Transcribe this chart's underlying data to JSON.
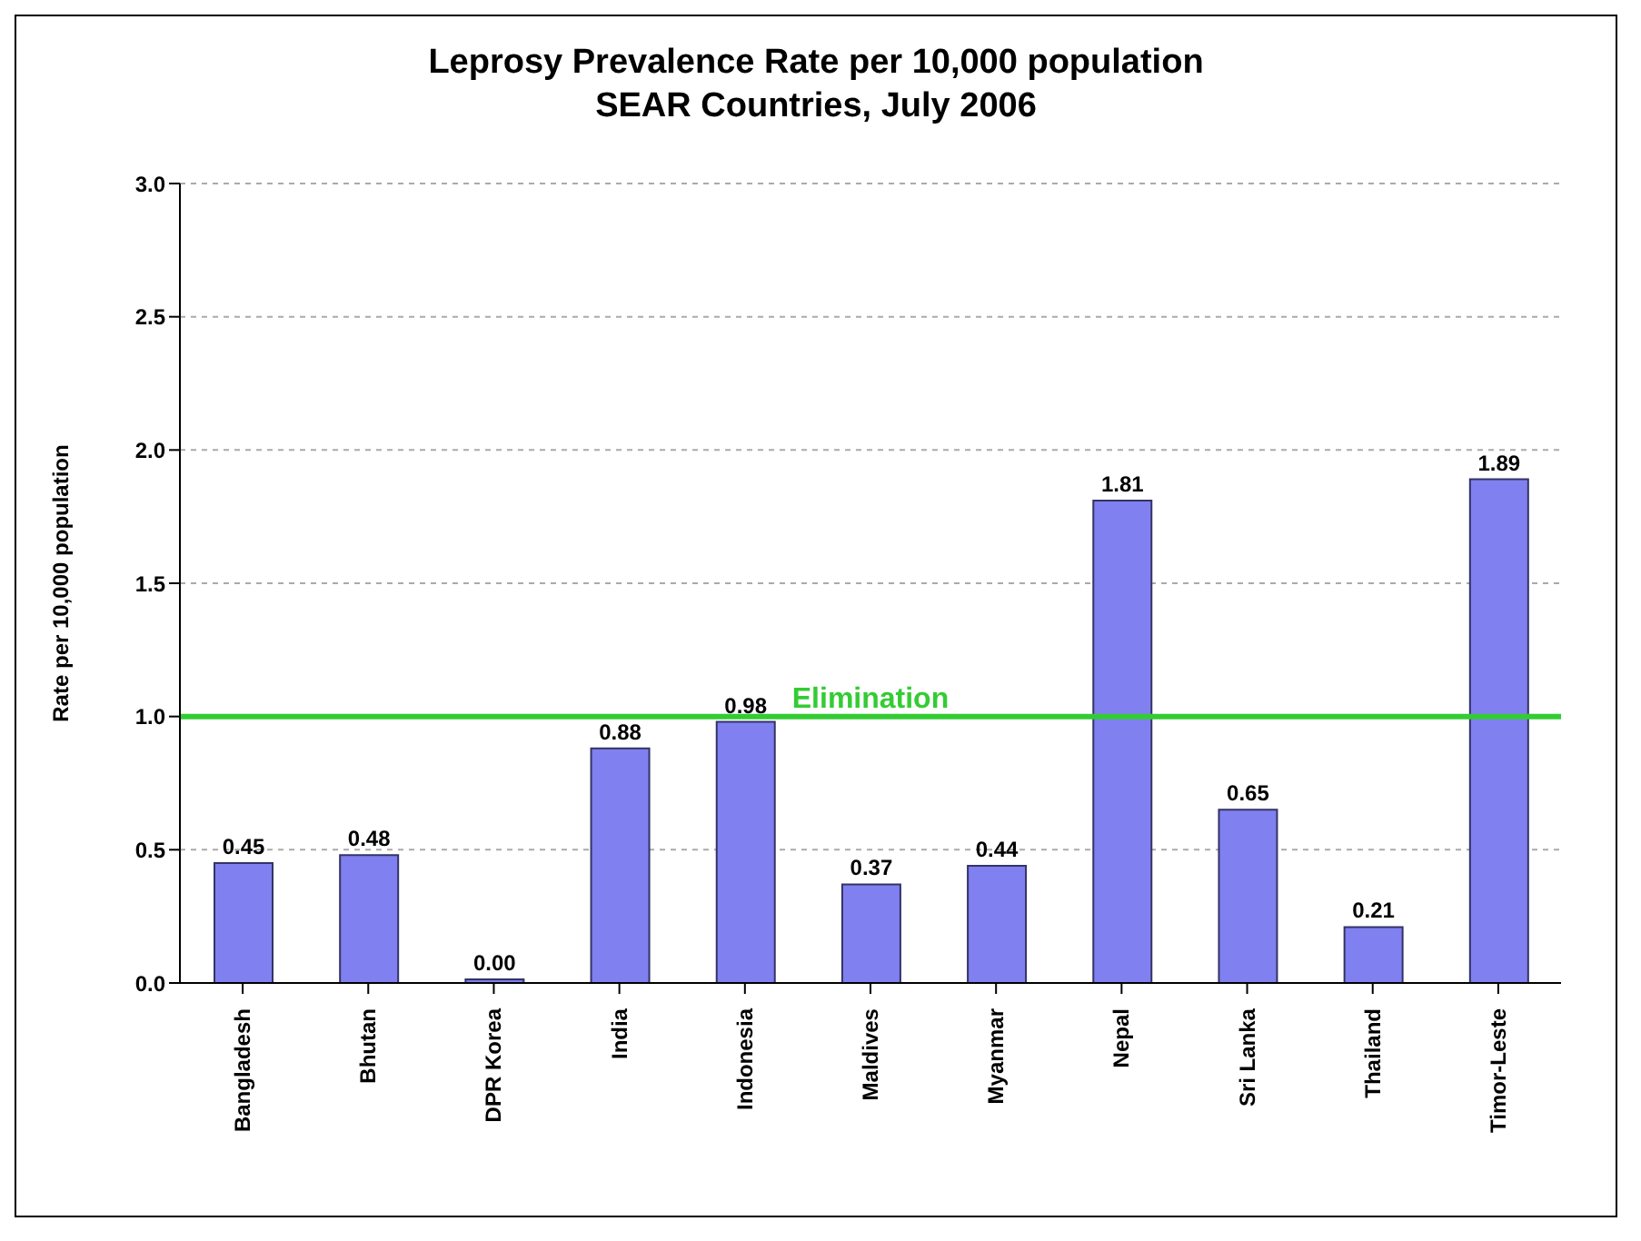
{
  "chart_data": {
    "type": "bar",
    "title": "Leprosy Prevalence Rate per 10,000 population",
    "subtitle": "SEAR Countries, July 2006",
    "ylabel": "Rate per 10,000 population",
    "categories": [
      "Bangladesh",
      "Bhutan",
      "DPR Korea",
      "India",
      "Indonesia",
      "Maldives",
      "Myanmar",
      "Nepal",
      "Sri Lanka",
      "Thailand",
      "Timor-Leste"
    ],
    "values": [
      0.45,
      0.48,
      0,
      0.88,
      0.98,
      0.37,
      0.44,
      1.81,
      0.65,
      0.21,
      1.89
    ],
    "value_labels": [
      "0.45",
      "0.48",
      "0.00",
      "0.88",
      "0.98",
      "0.37",
      "0.44",
      "1.81",
      "0.65",
      "0.21",
      "1.89"
    ],
    "color": "#8080f0",
    "ylim": [
      0,
      3
    ],
    "yticks": [
      {
        "value": 0,
        "label": "0.0"
      },
      {
        "value": 0.5,
        "label": "0.5"
      },
      {
        "value": 1,
        "label": "1.0"
      },
      {
        "value": 1.5,
        "label": "1.5"
      },
      {
        "value": 2,
        "label": "2.0"
      },
      {
        "value": 2.5,
        "label": "2.5"
      },
      {
        "value": 3,
        "label": "3.0"
      }
    ],
    "grid": "y",
    "ref_lines": [
      {
        "axis": "y",
        "value": 1,
        "label": "Elimination",
        "color": "#33cc33"
      }
    ]
  }
}
